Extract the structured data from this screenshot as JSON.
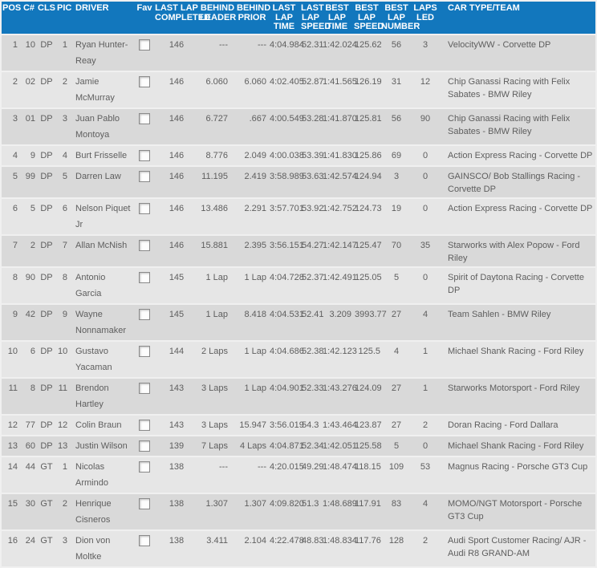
{
  "colors": {
    "header_bg": "#1277bd",
    "header_text": "#ffffff",
    "row_dark": "#d9d9d9",
    "row_light": "#e6e6e6",
    "page_bg": "#f0f0f0",
    "body_text": "#5e5e5e"
  },
  "table": {
    "columns": [
      {
        "id": "pos",
        "label": "POS"
      },
      {
        "id": "car_number",
        "label": "C#"
      },
      {
        "id": "cls",
        "label": "CLS"
      },
      {
        "id": "pic",
        "label": "PIC"
      },
      {
        "id": "driver",
        "label": "DRIVER"
      },
      {
        "id": "fav",
        "label": "Fav"
      },
      {
        "id": "last_lap_completed",
        "label": "LAST LAP\nCOMPLETED"
      },
      {
        "id": "behind_leader",
        "label": "BEHIND\nLEADER"
      },
      {
        "id": "behind_prior",
        "label": "BEHIND\nPRIOR"
      },
      {
        "id": "last_lap_time",
        "label": "LAST\nLAP\nTIME"
      },
      {
        "id": "last_lap_speed",
        "label": "LAST\nLAP\nSPEED"
      },
      {
        "id": "best_lap_time",
        "label": "BEST\nLAP\nTIME"
      },
      {
        "id": "best_lap_speed",
        "label": "BEST\nLAP\nSPEED"
      },
      {
        "id": "best_lap_number",
        "label": "BEST\nLAP\nNUMBER"
      },
      {
        "id": "laps_led",
        "label": "LAPS\nLED"
      },
      {
        "id": "team",
        "label": "CAR TYPE/TEAM"
      }
    ],
    "rows": [
      {
        "pos": "1",
        "car_number": "10",
        "cls": "DP",
        "pic": "1",
        "driver": "Ryan Hunter-Reay",
        "fav": false,
        "last_lap_completed": "146",
        "behind_leader": "---",
        "behind_prior": "---",
        "last_lap_time": "4:04.984",
        "last_lap_speed": "52.31",
        "best_lap_time": "1:42.024",
        "best_lap_speed": "125.62",
        "best_lap_number": "56",
        "laps_led": "3",
        "team": "VelocityWW - Corvette DP"
      },
      {
        "pos": "2",
        "car_number": "02",
        "cls": "DP",
        "pic": "2",
        "driver": "Jamie McMurray",
        "fav": false,
        "last_lap_completed": "146",
        "behind_leader": "6.060",
        "behind_prior": "6.060",
        "last_lap_time": "4:02.405",
        "last_lap_speed": "52.87",
        "best_lap_time": "1:41.565",
        "best_lap_speed": "126.19",
        "best_lap_number": "31",
        "laps_led": "12",
        "team": "Chip Ganassi Racing with Felix Sabates - BMW Riley"
      },
      {
        "pos": "3",
        "car_number": "01",
        "cls": "DP",
        "pic": "3",
        "driver": "Juan Pablo Montoya",
        "fav": false,
        "last_lap_completed": "146",
        "behind_leader": "6.727",
        "behind_prior": ".667",
        "last_lap_time": "4:00.549",
        "last_lap_speed": "53.28",
        "best_lap_time": "1:41.870",
        "best_lap_speed": "125.81",
        "best_lap_number": "56",
        "laps_led": "90",
        "team": "Chip Ganassi Racing with Felix Sabates - BMW Riley"
      },
      {
        "pos": "4",
        "car_number": "9",
        "cls": "DP",
        "pic": "4",
        "driver": "Burt Frisselle",
        "fav": false,
        "last_lap_completed": "146",
        "behind_leader": "8.776",
        "behind_prior": "2.049",
        "last_lap_time": "4:00.038",
        "last_lap_speed": "53.39",
        "best_lap_time": "1:41.830",
        "best_lap_speed": "125.86",
        "best_lap_number": "69",
        "laps_led": "0",
        "team": "Action Express Racing - Corvette DP"
      },
      {
        "pos": "5",
        "car_number": "99",
        "cls": "DP",
        "pic": "5",
        "driver": "Darren Law",
        "fav": false,
        "last_lap_completed": "146",
        "behind_leader": "11.195",
        "behind_prior": "2.419",
        "last_lap_time": "3:58.989",
        "last_lap_speed": "53.63",
        "best_lap_time": "1:42.574",
        "best_lap_speed": "124.94",
        "best_lap_number": "3",
        "laps_led": "0",
        "team": "GAINSCO/ Bob Stallings Racing - Corvette DP"
      },
      {
        "pos": "6",
        "car_number": "5",
        "cls": "DP",
        "pic": "6",
        "driver": "Nelson Piquet Jr",
        "fav": false,
        "last_lap_completed": "146",
        "behind_leader": "13.486",
        "behind_prior": "2.291",
        "last_lap_time": "3:57.701",
        "last_lap_speed": "53.92",
        "best_lap_time": "1:42.752",
        "best_lap_speed": "124.73",
        "best_lap_number": "19",
        "laps_led": "0",
        "team": "Action Express Racing - Corvette DP"
      },
      {
        "pos": "7",
        "car_number": "2",
        "cls": "DP",
        "pic": "7",
        "driver": "Allan McNish",
        "fav": false,
        "last_lap_completed": "146",
        "behind_leader": "15.881",
        "behind_prior": "2.395",
        "last_lap_time": "3:56.151",
        "last_lap_speed": "54.27",
        "best_lap_time": "1:42.147",
        "best_lap_speed": "125.47",
        "best_lap_number": "70",
        "laps_led": "35",
        "team": "Starworks with Alex Popow - Ford Riley"
      },
      {
        "pos": "8",
        "car_number": "90",
        "cls": "DP",
        "pic": "8",
        "driver": "Antonio Garcia",
        "fav": false,
        "last_lap_completed": "145",
        "behind_leader": "1 Lap",
        "behind_prior": "1 Lap",
        "last_lap_time": "4:04.728",
        "last_lap_speed": "52.37",
        "best_lap_time": "1:42.491",
        "best_lap_speed": "125.05",
        "best_lap_number": "5",
        "laps_led": "0",
        "team": "Spirit of Daytona Racing - Corvette DP"
      },
      {
        "pos": "9",
        "car_number": "42",
        "cls": "DP",
        "pic": "9",
        "driver": "Wayne Nonnamaker",
        "fav": false,
        "last_lap_completed": "145",
        "behind_leader": "1 Lap",
        "behind_prior": "8.418",
        "last_lap_time": "4:04.531",
        "last_lap_speed": "52.41",
        "best_lap_time": "3.209",
        "best_lap_speed": "3993.77",
        "best_lap_number": "27",
        "laps_led": "4",
        "team": "Team Sahlen - BMW Riley"
      },
      {
        "pos": "10",
        "car_number": "6",
        "cls": "DP",
        "pic": "10",
        "driver": "Gustavo Yacaman",
        "fav": false,
        "last_lap_completed": "144",
        "behind_leader": "2 Laps",
        "behind_prior": "1 Lap",
        "last_lap_time": "4:04.686",
        "last_lap_speed": "52.38",
        "best_lap_time": "1:42.123",
        "best_lap_speed": "125.5",
        "best_lap_number": "4",
        "laps_led": "1",
        "team": "Michael Shank Racing - Ford Riley"
      },
      {
        "pos": "11",
        "car_number": "8",
        "cls": "DP",
        "pic": "11",
        "driver": "Brendon Hartley",
        "fav": false,
        "last_lap_completed": "143",
        "behind_leader": "3 Laps",
        "behind_prior": "1 Lap",
        "last_lap_time": "4:04.901",
        "last_lap_speed": "52.33",
        "best_lap_time": "1:43.276",
        "best_lap_speed": "124.09",
        "best_lap_number": "27",
        "laps_led": "1",
        "team": "Starworks Motorsport - Ford Riley"
      },
      {
        "pos": "12",
        "car_number": "77",
        "cls": "DP",
        "pic": "12",
        "driver": "Colin Braun",
        "fav": false,
        "last_lap_completed": "143",
        "behind_leader": "3 Laps",
        "behind_prior": "15.947",
        "last_lap_time": "3:56.019",
        "last_lap_speed": "54.3",
        "best_lap_time": "1:43.464",
        "best_lap_speed": "123.87",
        "best_lap_number": "27",
        "laps_led": "2",
        "team": "Doran Racing - Ford Dallara"
      },
      {
        "pos": "13",
        "car_number": "60",
        "cls": "DP",
        "pic": "13",
        "driver": "Justin Wilson",
        "fav": false,
        "last_lap_completed": "139",
        "behind_leader": "7 Laps",
        "behind_prior": "4 Laps",
        "last_lap_time": "4:04.871",
        "last_lap_speed": "52.34",
        "best_lap_time": "1:42.051",
        "best_lap_speed": "125.58",
        "best_lap_number": "5",
        "laps_led": "0",
        "team": "Michael Shank Racing - Ford Riley"
      },
      {
        "pos": "14",
        "car_number": "44",
        "cls": "GT",
        "pic": "1",
        "driver": "Nicolas Armindo",
        "fav": false,
        "last_lap_completed": "138",
        "behind_leader": "---",
        "behind_prior": "---",
        "last_lap_time": "4:20.015",
        "last_lap_speed": "49.29",
        "best_lap_time": "1:48.474",
        "best_lap_speed": "118.15",
        "best_lap_number": "109",
        "laps_led": "53",
        "team": "Magnus Racing - Porsche GT3 Cup"
      },
      {
        "pos": "15",
        "car_number": "30",
        "cls": "GT",
        "pic": "2",
        "driver": "Henrique Cisneros",
        "fav": false,
        "last_lap_completed": "138",
        "behind_leader": "1.307",
        "behind_prior": "1.307",
        "last_lap_time": "4:09.820",
        "last_lap_speed": "51.3",
        "best_lap_time": "1:48.689",
        "best_lap_speed": "117.91",
        "best_lap_number": "83",
        "laps_led": "4",
        "team": "MOMO/NGT Motorsport - Porsche GT3 Cup"
      },
      {
        "pos": "16",
        "car_number": "24",
        "cls": "GT",
        "pic": "3",
        "driver": "Dion von Moltke",
        "fav": false,
        "last_lap_completed": "138",
        "behind_leader": "3.411",
        "behind_prior": "2.104",
        "last_lap_time": "4:22.478",
        "last_lap_speed": "48.83",
        "best_lap_time": "1:48.834",
        "best_lap_speed": "117.76",
        "best_lap_number": "128",
        "laps_led": "2",
        "team": "Audi Sport Customer Racing/ AJR - Audi R8 GRAND-AM"
      }
    ]
  }
}
